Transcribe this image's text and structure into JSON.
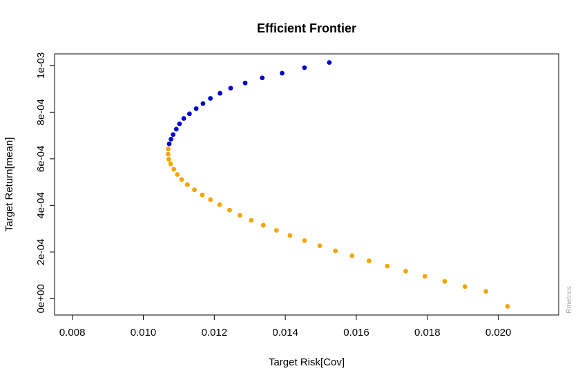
{
  "chart_data": {
    "type": "scatter",
    "title": "Efficient Frontier",
    "xlabel": "Target Risk[Cov]",
    "ylabel": "Target Return[mean]",
    "xlim": [
      0.0075,
      0.0217
    ],
    "ylim": [
      -7e-05,
      0.00105
    ],
    "x_ticks": [
      {
        "value": 0.008,
        "label": "0.008"
      },
      {
        "value": 0.01,
        "label": "0.010"
      },
      {
        "value": 0.012,
        "label": "0.012"
      },
      {
        "value": 0.014,
        "label": "0.014"
      },
      {
        "value": 0.016,
        "label": "0.016"
      },
      {
        "value": 0.018,
        "label": "0.018"
      },
      {
        "value": 0.02,
        "label": "0.020"
      }
    ],
    "y_ticks": [
      {
        "value": 0.0,
        "label": "0e+00"
      },
      {
        "value": 0.0002,
        "label": "2e-04"
      },
      {
        "value": 0.0004,
        "label": "4e-04"
      },
      {
        "value": 0.0006,
        "label": "6e-04"
      },
      {
        "value": 0.0008,
        "label": "8e-04"
      },
      {
        "value": 0.001,
        "label": "1e-03"
      }
    ],
    "grid": false,
    "watermark": "Rmetrics",
    "series": [
      {
        "color": "#0000cd",
        "x": [
          0.01073,
          0.01078,
          0.01084,
          0.01093,
          0.01102,
          0.01114,
          0.0113,
          0.01149,
          0.01168,
          0.01189,
          0.01216,
          0.01246,
          0.01287,
          0.01335,
          0.01391,
          0.01454,
          0.01524
        ],
        "y": [
          0.000664,
          0.000684,
          0.000704,
          0.000727,
          0.00075,
          0.000773,
          0.000793,
          0.000815,
          0.000837,
          0.000859,
          0.000881,
          0.000903,
          0.000925,
          0.000947,
          0.000967,
          0.000991,
          0.001013
        ]
      },
      {
        "color": "#f5a500",
        "x": [
          0.0107,
          0.0107,
          0.01072,
          0.01077,
          0.01086,
          0.01096,
          0.01108,
          0.01124,
          0.01144,
          0.01166,
          0.01189,
          0.01215,
          0.01243,
          0.01272,
          0.01304,
          0.01338,
          0.01375,
          0.01413,
          0.01454,
          0.01497,
          0.01541,
          0.01588,
          0.01636,
          0.01687,
          0.01739,
          0.01793,
          0.01849,
          0.01906,
          0.01965,
          0.02026
        ],
        "y": [
          0.000642,
          0.00062,
          0.000598,
          0.000578,
          0.000555,
          0.000533,
          0.000511,
          0.000489,
          0.000467,
          0.000445,
          0.000425,
          0.000403,
          0.00038,
          0.000358,
          0.000336,
          0.000315,
          0.000293,
          0.000271,
          0.000249,
          0.000227,
          0.000205,
          0.000184,
          0.000162,
          0.00014,
          0.000118,
          9.6e-05,
          7.4e-05,
          5.2e-05,
          3.1e-05,
          -3.3e-05
        ]
      }
    ]
  }
}
